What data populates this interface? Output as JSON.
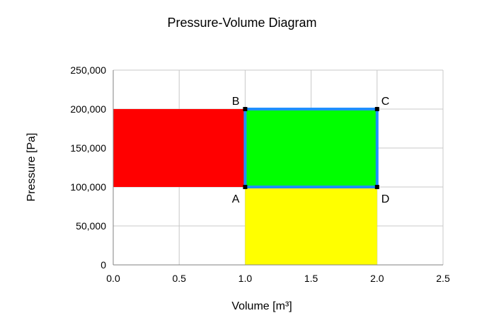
{
  "chart_data": {
    "type": "area",
    "title": "Pressure-Volume Diagram",
    "xlabel": "Volume [m³]",
    "ylabel": "Pressure  [Pa]",
    "xlim": [
      0,
      2.5
    ],
    "ylim": [
      0,
      250000
    ],
    "x_ticks": [
      0.0,
      0.5,
      1.0,
      1.5,
      2.0,
      2.5
    ],
    "x_tick_labels": [
      "0.0",
      "0.5",
      "1.0",
      "1.5",
      "2.0",
      "2.5"
    ],
    "y_ticks": [
      0,
      50000,
      100000,
      150000,
      200000,
      250000
    ],
    "y_tick_labels": [
      "0",
      "50,000",
      "100,000",
      "150,000",
      "200,000",
      "250,000"
    ],
    "grid": true,
    "regions": [
      {
        "x": [
          0,
          1
        ],
        "y": [
          100000,
          200000
        ],
        "color": "#ff0000"
      },
      {
        "x": [
          1,
          2
        ],
        "y": [
          0,
          100000
        ],
        "color": "#ffff00"
      },
      {
        "x": [
          1,
          2
        ],
        "y": [
          100000,
          200000
        ],
        "color": "#00ff00"
      }
    ],
    "cycle": {
      "color": "#1e90ff",
      "points": [
        {
          "label": "A",
          "x": 1,
          "y": 100000,
          "label_pos": "below-left"
        },
        {
          "label": "B",
          "x": 1,
          "y": 200000,
          "label_pos": "above-left"
        },
        {
          "label": "C",
          "x": 2,
          "y": 200000,
          "label_pos": "above-right"
        },
        {
          "label": "D",
          "x": 2,
          "y": 100000,
          "label_pos": "below-right"
        }
      ]
    }
  }
}
